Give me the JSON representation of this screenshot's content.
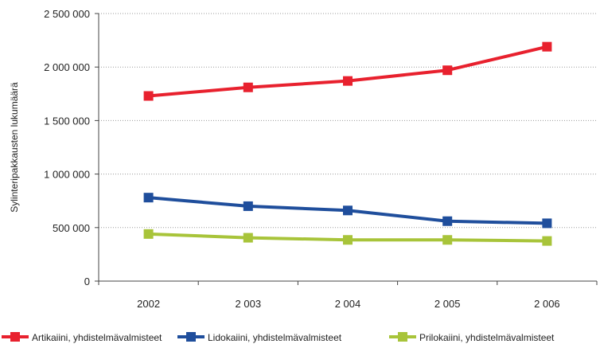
{
  "chart_data": {
    "type": "line",
    "title": "",
    "xlabel": "",
    "ylabel": "Sylinteripakkausten lukumäärä",
    "categories": [
      "2002",
      "2 003",
      "2 004",
      "2 005",
      "2 006"
    ],
    "ylim": [
      0,
      2500000
    ],
    "yticks": [
      0,
      500000,
      1000000,
      1500000,
      2000000,
      2500000
    ],
    "ytick_labels": [
      "0",
      "500 000",
      "1 000 000",
      "1 500 000",
      "2 000 000",
      "2 500 000"
    ],
    "grid": true,
    "legend_position": "bottom",
    "series": [
      {
        "name": "Artikaiini, yhdistelmävalmisteet",
        "color": "#e8212e",
        "values": [
          1730000,
          1810000,
          1870000,
          1970000,
          2190000
        ]
      },
      {
        "name": "Lidokaiini, yhdistelmävalmisteet",
        "color": "#1f4e9c",
        "values": [
          780000,
          700000,
          660000,
          560000,
          540000
        ]
      },
      {
        "name": "Prilokaiini, yhdistelmävalmisteet",
        "color": "#a8c43a",
        "values": [
          440000,
          405000,
          385000,
          385000,
          375000
        ]
      }
    ]
  }
}
